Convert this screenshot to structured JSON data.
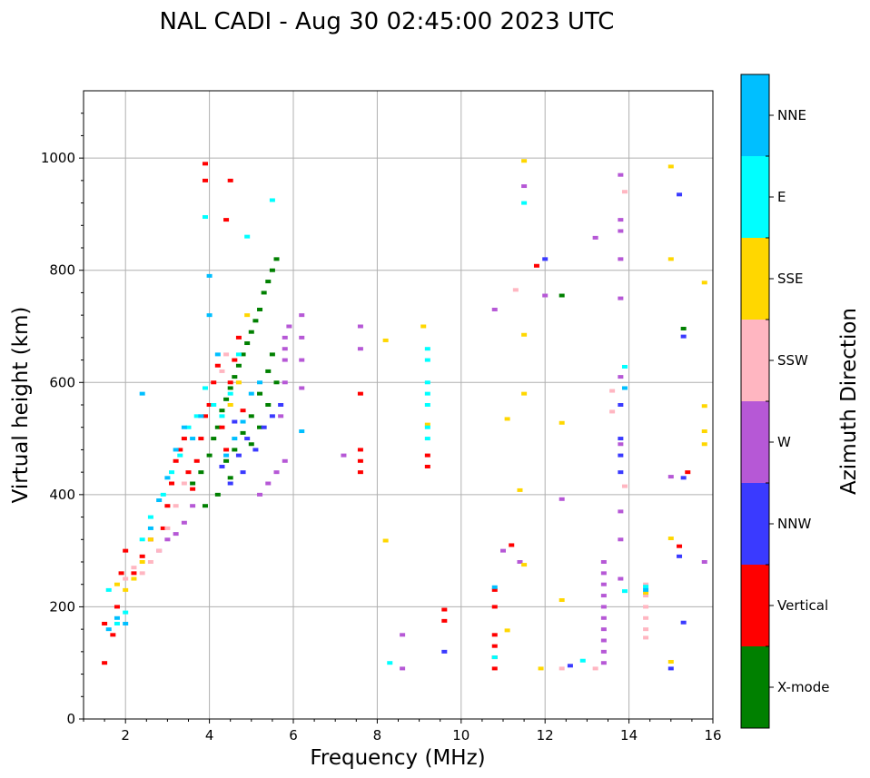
{
  "chart_data": {
    "type": "scatter",
    "title": "NAL CADI - Aug 30 02:45:00 2023 UTC",
    "xlabel": "Frequency (MHz)",
    "ylabel": "Virtual height (km)",
    "xlim": [
      1,
      16
    ],
    "ylim": [
      0,
      1120
    ],
    "xticks": [
      2,
      4,
      6,
      8,
      10,
      12,
      14,
      16
    ],
    "yticks": [
      0,
      200,
      400,
      600,
      800,
      1000
    ],
    "grid": true,
    "colorbar": {
      "label": "Azimuth Direction",
      "categories": [
        {
          "name": "X-mode",
          "color": "#008000"
        },
        {
          "name": "Vertical",
          "color": "#ff0000"
        },
        {
          "name": "NNW",
          "color": "#3a3aff"
        },
        {
          "name": "W",
          "color": "#b658d6"
        },
        {
          "name": "SSW",
          "color": "#ffb6c1"
        },
        {
          "name": "SSE",
          "color": "#ffd700"
        },
        {
          "name": "E",
          "color": "#00ffff"
        },
        {
          "name": "NNE",
          "color": "#00bfff"
        }
      ]
    },
    "series": [
      {
        "name": "X-mode",
        "points": [
          [
            3.6,
            420
          ],
          [
            3.8,
            440
          ],
          [
            4.0,
            470
          ],
          [
            4.1,
            500
          ],
          [
            4.2,
            520
          ],
          [
            4.3,
            550
          ],
          [
            4.4,
            570
          ],
          [
            4.5,
            590
          ],
          [
            4.6,
            610
          ],
          [
            4.7,
            630
          ],
          [
            4.8,
            650
          ],
          [
            4.9,
            670
          ],
          [
            5.0,
            690
          ],
          [
            5.1,
            710
          ],
          [
            5.2,
            730
          ],
          [
            5.3,
            760
          ],
          [
            5.4,
            780
          ],
          [
            5.5,
            800
          ],
          [
            5.6,
            820
          ],
          [
            5.0,
            490
          ],
          [
            5.2,
            520
          ],
          [
            5.4,
            560
          ],
          [
            5.6,
            600
          ],
          [
            4.4,
            460
          ],
          [
            4.6,
            480
          ],
          [
            4.8,
            510
          ],
          [
            5.0,
            540
          ],
          [
            5.2,
            580
          ],
          [
            5.4,
            620
          ],
          [
            5.5,
            650
          ],
          [
            3.9,
            380
          ],
          [
            4.2,
            400
          ],
          [
            4.5,
            430
          ],
          [
            12.4,
            755
          ],
          [
            15.3,
            696
          ]
        ]
      },
      {
        "name": "Vertical",
        "points": [
          [
            1.5,
            170
          ],
          [
            1.5,
            100
          ],
          [
            1.7,
            150
          ],
          [
            1.8,
            200
          ],
          [
            1.9,
            260
          ],
          [
            2.0,
            300
          ],
          [
            2.2,
            260
          ],
          [
            2.4,
            290
          ],
          [
            2.6,
            320
          ],
          [
            2.9,
            340
          ],
          [
            3.0,
            380
          ],
          [
            3.1,
            420
          ],
          [
            3.2,
            460
          ],
          [
            3.3,
            480
          ],
          [
            3.4,
            500
          ],
          [
            3.5,
            440
          ],
          [
            3.6,
            410
          ],
          [
            3.7,
            460
          ],
          [
            3.8,
            500
          ],
          [
            3.9,
            540
          ],
          [
            4.0,
            560
          ],
          [
            4.1,
            600
          ],
          [
            4.2,
            630
          ],
          [
            4.3,
            520
          ],
          [
            4.4,
            480
          ],
          [
            4.5,
            600
          ],
          [
            4.6,
            640
          ],
          [
            4.7,
            680
          ],
          [
            4.8,
            550
          ],
          [
            3.9,
            960
          ],
          [
            3.9,
            990
          ],
          [
            4.5,
            960
          ],
          [
            4.4,
            890
          ],
          [
            7.6,
            580
          ],
          [
            7.6,
            440
          ],
          [
            7.6,
            460
          ],
          [
            7.6,
            480
          ],
          [
            9.2,
            470
          ],
          [
            9.2,
            450
          ],
          [
            9.6,
            195
          ],
          [
            9.6,
            175
          ],
          [
            10.8,
            90
          ],
          [
            10.8,
            110
          ],
          [
            10.8,
            130
          ],
          [
            10.8,
            150
          ],
          [
            10.8,
            200
          ],
          [
            10.8,
            230
          ],
          [
            11.2,
            310
          ],
          [
            11.8,
            808
          ],
          [
            15.2,
            308
          ],
          [
            15.4,
            440
          ]
        ]
      },
      {
        "name": "NNW",
        "points": [
          [
            4.3,
            450
          ],
          [
            4.5,
            420
          ],
          [
            4.7,
            470
          ],
          [
            4.9,
            500
          ],
          [
            5.1,
            480
          ],
          [
            5.3,
            520
          ],
          [
            5.5,
            540
          ],
          [
            5.7,
            560
          ],
          [
            4.6,
            530
          ],
          [
            4.8,
            440
          ],
          [
            12.0,
            820
          ],
          [
            12.6,
            95
          ],
          [
            13.8,
            560
          ],
          [
            13.8,
            500
          ],
          [
            13.8,
            470
          ],
          [
            13.8,
            440
          ],
          [
            15.2,
            935
          ],
          [
            15.3,
            682
          ],
          [
            15.3,
            430
          ],
          [
            15.2,
            290
          ],
          [
            15.3,
            172
          ],
          [
            15.0,
            90
          ],
          [
            9.6,
            120
          ]
        ]
      },
      {
        "name": "W",
        "points": [
          [
            2.8,
            300
          ],
          [
            3.0,
            320
          ],
          [
            3.2,
            330
          ],
          [
            3.4,
            350
          ],
          [
            3.6,
            380
          ],
          [
            5.2,
            400
          ],
          [
            5.4,
            420
          ],
          [
            5.6,
            440
          ],
          [
            5.8,
            460
          ],
          [
            5.7,
            540
          ],
          [
            5.8,
            600
          ],
          [
            5.8,
            640
          ],
          [
            5.8,
            660
          ],
          [
            5.8,
            680
          ],
          [
            5.9,
            700
          ],
          [
            6.2,
            680
          ],
          [
            6.2,
            720
          ],
          [
            6.2,
            640
          ],
          [
            6.2,
            590
          ],
          [
            7.2,
            470
          ],
          [
            7.6,
            700
          ],
          [
            7.6,
            660
          ],
          [
            8.6,
            150
          ],
          [
            8.6,
            90
          ],
          [
            10.8,
            730
          ],
          [
            11.0,
            300
          ],
          [
            11.4,
            280
          ],
          [
            12.0,
            755
          ],
          [
            12.4,
            392
          ],
          [
            13.2,
            858
          ],
          [
            13.4,
            280
          ],
          [
            13.4,
            260
          ],
          [
            13.4,
            240
          ],
          [
            13.4,
            220
          ],
          [
            13.4,
            200
          ],
          [
            13.4,
            180
          ],
          [
            13.4,
            160
          ],
          [
            13.4,
            140
          ],
          [
            13.4,
            120
          ],
          [
            13.4,
            100
          ],
          [
            13.8,
            970
          ],
          [
            13.8,
            890
          ],
          [
            13.8,
            870
          ],
          [
            13.8,
            820
          ],
          [
            13.8,
            750
          ],
          [
            13.8,
            610
          ],
          [
            13.8,
            490
          ],
          [
            13.8,
            370
          ],
          [
            13.8,
            320
          ],
          [
            13.8,
            250
          ],
          [
            15.0,
            432
          ],
          [
            15.8,
            280
          ],
          [
            11.5,
            950
          ]
        ]
      },
      {
        "name": "SSW",
        "points": [
          [
            2.0,
            250
          ],
          [
            2.2,
            270
          ],
          [
            2.4,
            260
          ],
          [
            2.6,
            280
          ],
          [
            2.8,
            300
          ],
          [
            3.0,
            340
          ],
          [
            3.2,
            380
          ],
          [
            3.4,
            420
          ],
          [
            4.3,
            620
          ],
          [
            4.4,
            650
          ],
          [
            4.5,
            560
          ],
          [
            4.7,
            600
          ],
          [
            11.3,
            765
          ],
          [
            12.4,
            90
          ],
          [
            13.2,
            90
          ],
          [
            13.6,
            585
          ],
          [
            13.6,
            548
          ],
          [
            13.9,
            940
          ],
          [
            13.9,
            415
          ],
          [
            14.4,
            240
          ],
          [
            14.4,
            220
          ],
          [
            14.4,
            200
          ],
          [
            14.4,
            180
          ],
          [
            14.4,
            160
          ],
          [
            14.4,
            145
          ]
        ]
      },
      {
        "name": "SSE",
        "points": [
          [
            1.8,
            240
          ],
          [
            2.0,
            230
          ],
          [
            2.2,
            250
          ],
          [
            2.4,
            280
          ],
          [
            2.6,
            320
          ],
          [
            4.5,
            560
          ],
          [
            4.7,
            600
          ],
          [
            4.9,
            720
          ],
          [
            8.2,
            675
          ],
          [
            8.2,
            318
          ],
          [
            9.1,
            700
          ],
          [
            9.2,
            525
          ],
          [
            11.1,
            535
          ],
          [
            11.1,
            158
          ],
          [
            11.4,
            408
          ],
          [
            11.5,
            995
          ],
          [
            11.5,
            685
          ],
          [
            11.5,
            580
          ],
          [
            11.5,
            275
          ],
          [
            11.9,
            90
          ],
          [
            12.4,
            528
          ],
          [
            12.4,
            212
          ],
          [
            15.0,
            985
          ],
          [
            15.0,
            820
          ],
          [
            15.0,
            322
          ],
          [
            15.0,
            102
          ],
          [
            15.8,
            778
          ],
          [
            15.8,
            558
          ],
          [
            15.8,
            513
          ],
          [
            15.8,
            490
          ],
          [
            14.4,
            225
          ]
        ]
      },
      {
        "name": "E",
        "points": [
          [
            1.6,
            230
          ],
          [
            1.8,
            170
          ],
          [
            2.0,
            190
          ],
          [
            2.4,
            320
          ],
          [
            2.6,
            360
          ],
          [
            2.9,
            400
          ],
          [
            3.1,
            440
          ],
          [
            3.3,
            470
          ],
          [
            3.5,
            520
          ],
          [
            3.7,
            540
          ],
          [
            3.9,
            590
          ],
          [
            4.1,
            560
          ],
          [
            4.3,
            540
          ],
          [
            4.5,
            580
          ],
          [
            4.7,
            650
          ],
          [
            4.9,
            860
          ],
          [
            3.9,
            895
          ],
          [
            5.5,
            925
          ],
          [
            9.2,
            660
          ],
          [
            9.2,
            640
          ],
          [
            9.2,
            600
          ],
          [
            9.2,
            580
          ],
          [
            9.2,
            560
          ],
          [
            9.2,
            520
          ],
          [
            9.2,
            500
          ],
          [
            8.3,
            100
          ],
          [
            10.8,
            110
          ],
          [
            11.5,
            920
          ],
          [
            12.9,
            104
          ],
          [
            13.9,
            628
          ],
          [
            13.9,
            228
          ],
          [
            14.4,
            236
          ]
        ]
      },
      {
        "name": "NNE",
        "points": [
          [
            1.6,
            160
          ],
          [
            1.8,
            180
          ],
          [
            2.0,
            170
          ],
          [
            2.4,
            580
          ],
          [
            2.6,
            340
          ],
          [
            2.8,
            390
          ],
          [
            3.0,
            430
          ],
          [
            3.2,
            480
          ],
          [
            3.4,
            520
          ],
          [
            3.6,
            500
          ],
          [
            3.8,
            540
          ],
          [
            4.0,
            720
          ],
          [
            4.0,
            790
          ],
          [
            4.2,
            650
          ],
          [
            4.4,
            470
          ],
          [
            4.6,
            500
          ],
          [
            4.8,
            530
          ],
          [
            5.0,
            580
          ],
          [
            5.2,
            600
          ],
          [
            6.2,
            513
          ],
          [
            10.8,
            235
          ],
          [
            13.9,
            590
          ],
          [
            14.4,
            230
          ]
        ]
      }
    ]
  }
}
